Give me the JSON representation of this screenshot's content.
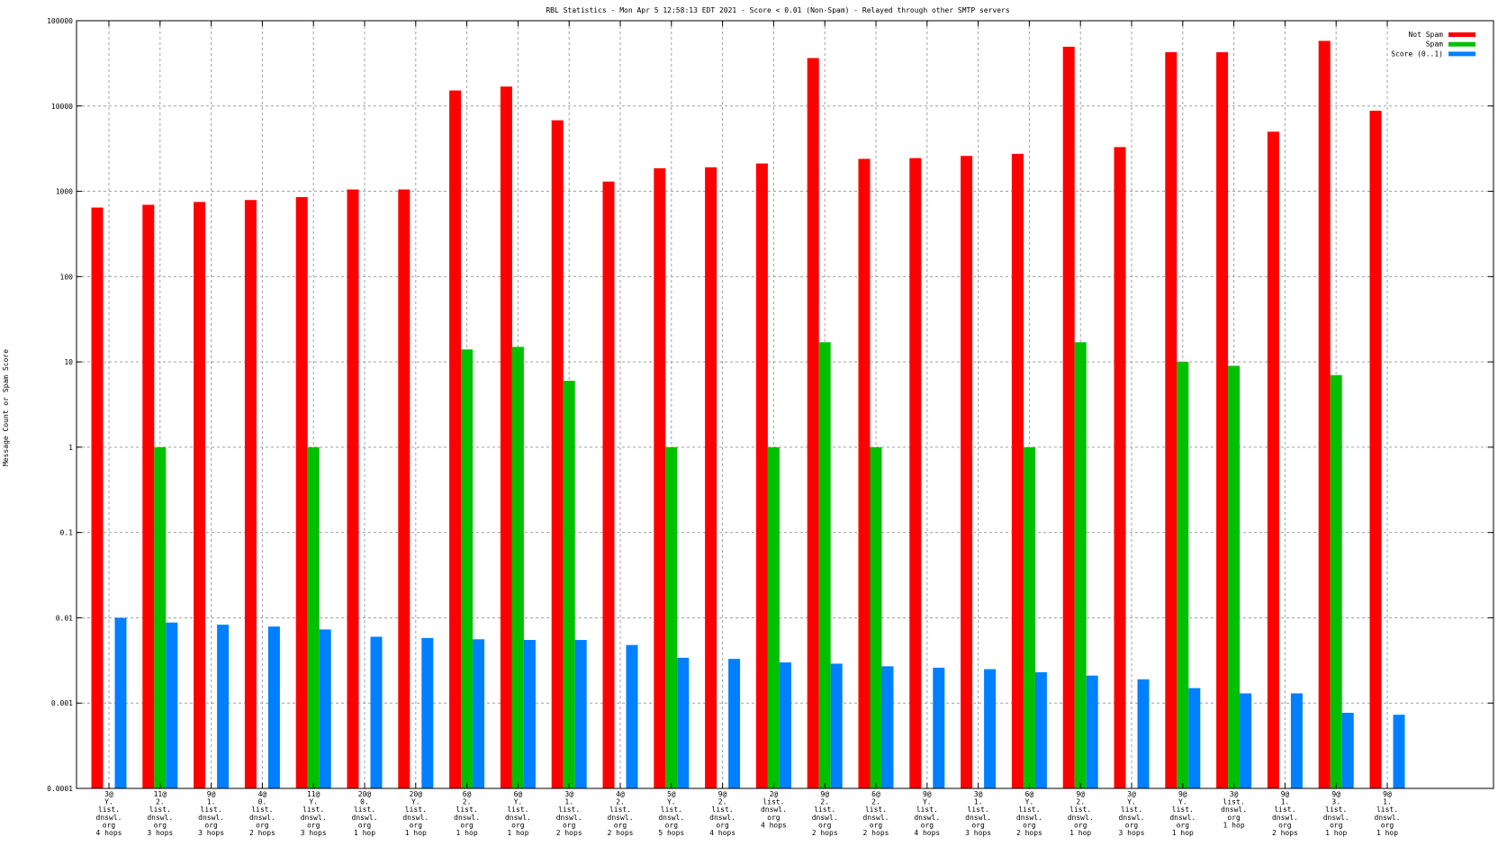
{
  "chart_data": {
    "type": "bar",
    "title": "RBL Statistics - Mon Apr  5 12:58:13 EDT 2021 - Score < 0.01 (Non-Spam) - Relayed through other SMTP servers",
    "xlabel": "",
    "ylabel": "Message Count or Spam Score",
    "yscale": "log",
    "ylim": [
      0.0001,
      100000
    ],
    "yticks": [
      "0.0001",
      "0.001",
      "0.01",
      "0.1",
      "1",
      "10",
      "100",
      "1000",
      "10000",
      "100000"
    ],
    "grid": true,
    "legend_position": "top-right",
    "categories": [
      [
        "3@",
        "Y.",
        "list.",
        "dnswl.",
        "org",
        "4 hops"
      ],
      [
        "11@",
        "2.",
        "list.",
        "dnswl.",
        "org",
        "3 hops"
      ],
      [
        "9@",
        "1.",
        "list.",
        "dnswl.",
        "org",
        "3 hops"
      ],
      [
        "4@",
        "0.",
        "list.",
        "dnswl.",
        "org",
        "2 hops"
      ],
      [
        "11@",
        "Y.",
        "list.",
        "dnswl.",
        "org",
        "3 hops"
      ],
      [
        "20@",
        "0.",
        "list.",
        "dnswl.",
        "org",
        "1 hop"
      ],
      [
        "20@",
        "Y.",
        "list.",
        "dnswl.",
        "org",
        "1 hop"
      ],
      [
        "6@",
        "2.",
        "list.",
        "dnswl.",
        "org",
        "1 hop"
      ],
      [
        "6@",
        "Y.",
        "list.",
        "dnswl.",
        "org",
        "1 hop"
      ],
      [
        "3@",
        "1.",
        "list.",
        "dnswl.",
        "org",
        "2 hops"
      ],
      [
        "4@",
        "2.",
        "list.",
        "dnswl.",
        "org",
        "2 hops"
      ],
      [
        "5@",
        "Y.",
        "list.",
        "dnswl.",
        "org",
        "5 hops"
      ],
      [
        "9@",
        "2.",
        "list.",
        "dnswl.",
        "org",
        "4 hops"
      ],
      [
        "2@",
        "list.",
        "dnswl.",
        "org",
        "4 hops"
      ],
      [
        "9@",
        "2.",
        "list.",
        "dnswl.",
        "org",
        "2 hops"
      ],
      [
        "6@",
        "2.",
        "list.",
        "dnswl.",
        "org",
        "2 hops"
      ],
      [
        "9@",
        "Y.",
        "list.",
        "dnswl.",
        "org",
        "4 hops"
      ],
      [
        "3@",
        "1.",
        "list.",
        "dnswl.",
        "org",
        "3 hops"
      ],
      [
        "6@",
        "Y.",
        "list.",
        "dnswl.",
        "org",
        "2 hops"
      ],
      [
        "9@",
        "2.",
        "list.",
        "dnswl.",
        "org",
        "1 hop"
      ],
      [
        "3@",
        "Y.",
        "list.",
        "dnswl.",
        "org",
        "3 hops"
      ],
      [
        "9@",
        "Y.",
        "list.",
        "dnswl.",
        "org",
        "1 hop"
      ],
      [
        "3@",
        "list.",
        "dnswl.",
        "org",
        "1 hop"
      ],
      [
        "9@",
        "1.",
        "list.",
        "dnswl.",
        "org",
        "2 hops"
      ],
      [
        "9@",
        "3.",
        "list.",
        "dnswl.",
        "org",
        "1 hop"
      ],
      [
        "9@",
        "1.",
        "list.",
        "dnswl.",
        "org",
        "1 hop"
      ]
    ],
    "series": [
      {
        "name": "Not Spam",
        "color": "#ff0000",
        "values": [
          645,
          695,
          750,
          790,
          855,
          1050,
          1050,
          15200,
          16900,
          6800,
          1300,
          1860,
          1910,
          2120,
          36500,
          2400,
          2450,
          2600,
          2750,
          49500,
          3300,
          42700,
          42700,
          5000,
          58000,
          8800
        ]
      },
      {
        "name": "Spam",
        "color": "#00c000",
        "values": [
          null,
          1,
          null,
          null,
          1,
          null,
          null,
          14,
          15,
          6,
          null,
          1,
          null,
          1,
          17,
          1,
          null,
          null,
          1,
          17,
          null,
          10,
          9,
          null,
          7,
          null
        ]
      },
      {
        "name": "Score (0..1)",
        "color": "#0080ff",
        "values": [
          0.01,
          0.0088,
          0.0083,
          0.0079,
          0.0073,
          0.006,
          0.0058,
          0.0056,
          0.0055,
          0.0055,
          0.0048,
          0.0034,
          0.0033,
          0.003,
          0.0029,
          0.0027,
          0.0026,
          0.0025,
          0.0023,
          0.0021,
          0.0019,
          0.0015,
          0.0013,
          0.0013,
          0.00077,
          0.00073
        ]
      }
    ]
  }
}
